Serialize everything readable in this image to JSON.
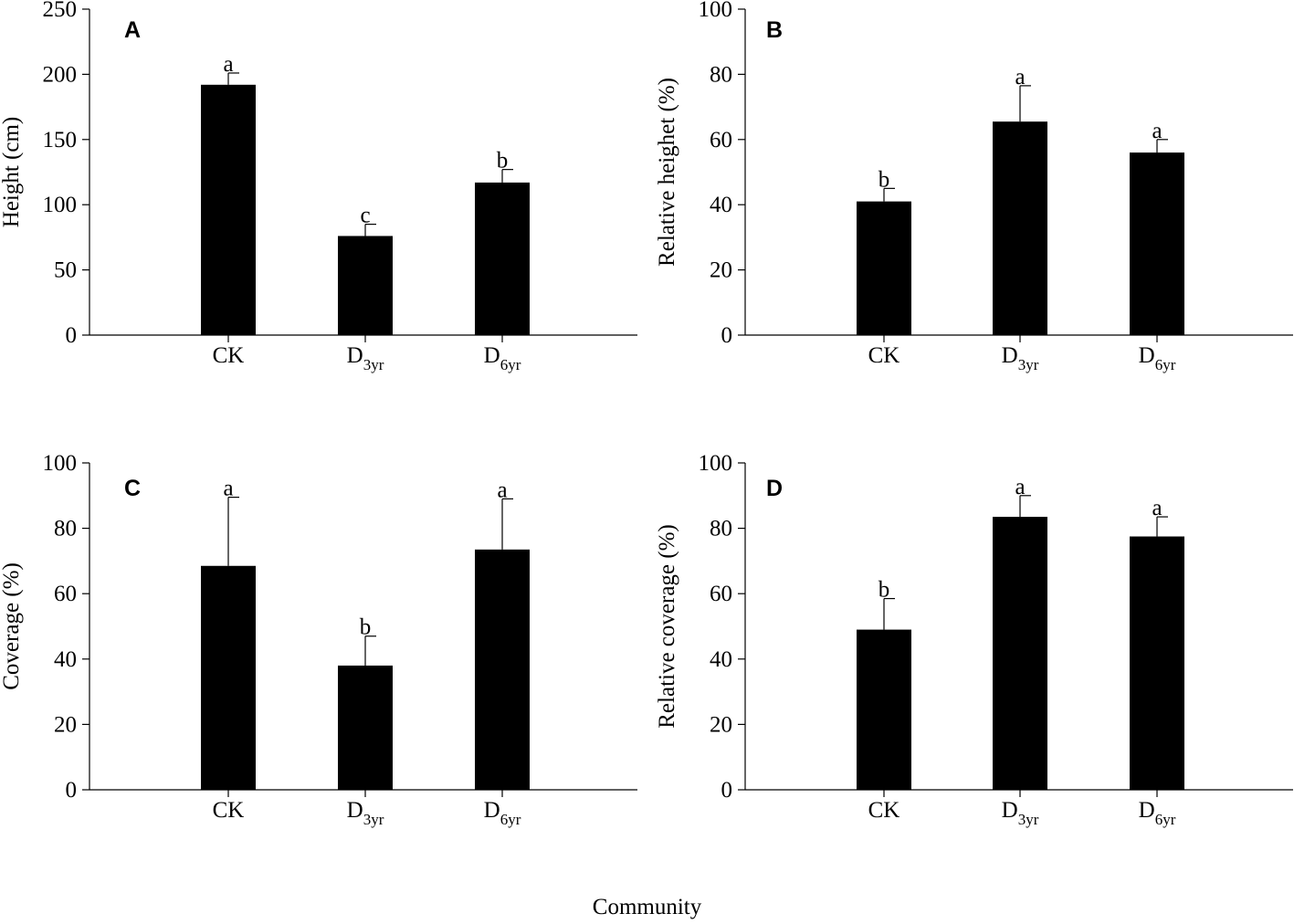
{
  "figure": {
    "common_xlabel": "Community"
  },
  "chart_data": [
    {
      "panel": "A",
      "type": "bar",
      "categories": [
        {
          "main": "CK",
          "sub": ""
        },
        {
          "main": "D",
          "sub": "3yr"
        },
        {
          "main": "D",
          "sub": "6yr"
        }
      ],
      "values": [
        192,
        76,
        117
      ],
      "errors": [
        9,
        9,
        10
      ],
      "letters": [
        "a",
        "c",
        "b"
      ],
      "ylabel": "Height (cm)",
      "ylim": [
        0,
        250
      ],
      "yticks": [
        0,
        50,
        100,
        150,
        200,
        250
      ],
      "yticks_text": [
        "0",
        "50",
        "100",
        "150",
        "200",
        "250"
      ],
      "bar_color": "#000000"
    },
    {
      "panel": "B",
      "type": "bar",
      "categories": [
        {
          "main": "CK",
          "sub": ""
        },
        {
          "main": "D",
          "sub": "3yr"
        },
        {
          "main": "D",
          "sub": "6yr"
        }
      ],
      "values": [
        41,
        65.5,
        56
      ],
      "errors": [
        4,
        11,
        4
      ],
      "letters": [
        "b",
        "a",
        "a"
      ],
      "ylabel": "Relative heighet (%)",
      "ylim": [
        0,
        100
      ],
      "yticks": [
        0,
        20,
        40,
        60,
        80,
        100
      ],
      "yticks_text": [
        "0",
        "20",
        "40",
        "60",
        "80",
        "100"
      ],
      "bar_color": "#000000"
    },
    {
      "panel": "C",
      "type": "bar",
      "categories": [
        {
          "main": "CK",
          "sub": ""
        },
        {
          "main": "D",
          "sub": "3yr"
        },
        {
          "main": "D",
          "sub": "6yr"
        }
      ],
      "values": [
        68.5,
        38,
        73.5
      ],
      "errors": [
        21,
        9,
        15.5
      ],
      "letters": [
        "a",
        "b",
        "a"
      ],
      "ylabel": "Coverage (%)",
      "ylim": [
        0,
        100
      ],
      "yticks": [
        0,
        20,
        40,
        60,
        80,
        100
      ],
      "yticks_text": [
        "0",
        "20",
        "40",
        "60",
        "80",
        "100"
      ],
      "bar_color": "#000000"
    },
    {
      "panel": "D",
      "type": "bar",
      "categories": [
        {
          "main": "CK",
          "sub": ""
        },
        {
          "main": "D",
          "sub": "3yr"
        },
        {
          "main": "D",
          "sub": "6yr"
        }
      ],
      "values": [
        49,
        83.5,
        77.5
      ],
      "errors": [
        9.5,
        6.5,
        6
      ],
      "letters": [
        "b",
        "a",
        "a"
      ],
      "ylabel": "Relative coverage (%)",
      "ylim": [
        0,
        100
      ],
      "yticks": [
        0,
        20,
        40,
        60,
        80,
        100
      ],
      "yticks_text": [
        "0",
        "20",
        "40",
        "60",
        "80",
        "100"
      ],
      "bar_color": "#000000"
    }
  ]
}
